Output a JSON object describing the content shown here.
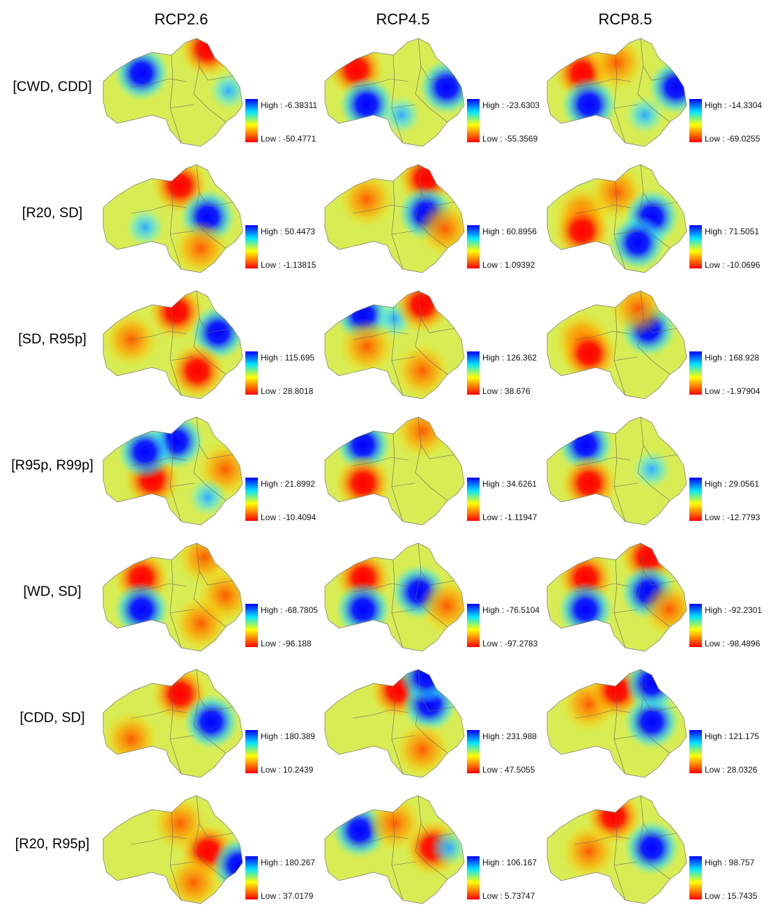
{
  "columns": [
    "RCP2.6",
    "RCP4.5",
    "RCP8.5"
  ],
  "rows": [
    {
      "label": "[CWD, CDD]",
      "panels": [
        {
          "high": "High : -6.38311",
          "low": "Low : -50.4771"
        },
        {
          "high": "High : -23.6303",
          "low": "Low : -55.3569"
        },
        {
          "high": "High : -14.3304",
          "low": "Low : -69.0255"
        }
      ]
    },
    {
      "label": "[R20, SD]",
      "panels": [
        {
          "high": "High : 50.4473",
          "low": "Low : -1.13815"
        },
        {
          "high": "High : 60.8956",
          "low": "Low : 1.09392"
        },
        {
          "high": "High : 71.5051",
          "low": "Low : -10.0696"
        }
      ]
    },
    {
      "label": "[SD, R95p]",
      "panels": [
        {
          "high": "High : 115.695",
          "low": "Low : 28.8018"
        },
        {
          "high": "High : 126.362",
          "low": "Low : 38.676"
        },
        {
          "high": "High : 168.928",
          "low": "Low : -1.97904"
        }
      ]
    },
    {
      "label": "[R95p, R99p]",
      "panels": [
        {
          "high": "High : 21.8992",
          "low": "Low : -10.4094"
        },
        {
          "high": "High : 34.6261",
          "low": "Low : -1.11947"
        },
        {
          "high": "High : 29.0561",
          "low": "Low : -12.7793"
        }
      ]
    },
    {
      "label": "[WD, SD]",
      "panels": [
        {
          "high": "High : -68.7805",
          "low": "Low : -96.188"
        },
        {
          "high": "High : -76.5104",
          "low": "Low : -97.2783"
        },
        {
          "high": "High : -92.2301",
          "low": "Low : -98.4896"
        }
      ]
    },
    {
      "label": "[CDD, SD]",
      "panels": [
        {
          "high": "High : 180.389",
          "low": "Low : 10.2439"
        },
        {
          "high": "High : 231.988",
          "low": "Low : 47.5055"
        },
        {
          "high": "High : 121.175",
          "low": "Low : 28.0326"
        }
      ]
    },
    {
      "label": "[R20, R95p]",
      "panels": [
        {
          "high": "High : 180.267",
          "low": "Low : 37.0179"
        },
        {
          "high": "High : 106.167",
          "low": "Low : 5.73747"
        },
        {
          "high": "High : 98.757",
          "low": "Low : 15.7435"
        }
      ]
    }
  ]
}
